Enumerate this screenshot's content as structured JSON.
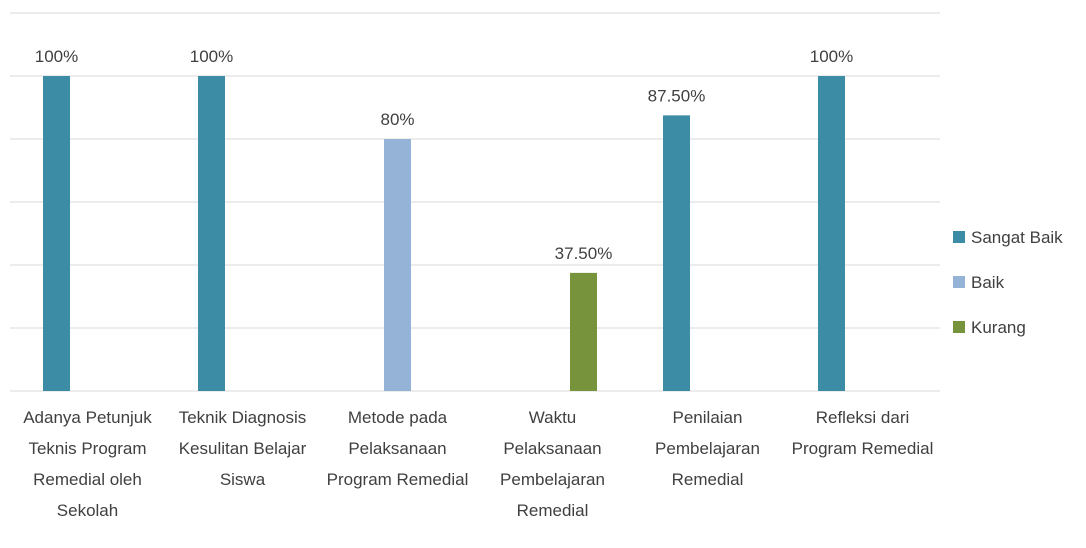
{
  "chart_data": {
    "type": "bar",
    "categories": [
      "Adanya Petunjuk Teknis Program Remedial oleh Sekolah",
      "Teknik Diagnosis Kesulitan Belajar Siswa",
      "Metode pada Pelaksanaan Program Remedial",
      "Waktu Pelaksanaan Pembelajaran Remedial",
      "Penilaian Pembelajaran Remedial",
      "Refleksi dari Program Remedial"
    ],
    "series": [
      {
        "name": "Sangat Baik",
        "color": "#3c8ca5",
        "values": [
          100,
          100,
          null,
          null,
          87.5,
          100
        ],
        "value_labels": [
          "100%",
          "100%",
          null,
          null,
          "87.50%",
          "100%"
        ]
      },
      {
        "name": "Baik",
        "color": "#95b3d7",
        "values": [
          null,
          null,
          80,
          null,
          null,
          null
        ],
        "value_labels": [
          null,
          null,
          "80%",
          null,
          null,
          null
        ]
      },
      {
        "name": "Kurang",
        "color": "#77933c",
        "values": [
          null,
          null,
          null,
          37.5,
          null,
          null
        ],
        "value_labels": [
          null,
          null,
          null,
          "37.50%",
          null,
          null
        ]
      }
    ],
    "ylim": [
      0,
      120
    ],
    "yticks": [
      0,
      20,
      40,
      60,
      80,
      100,
      120
    ],
    "grid": true,
    "legend": "right"
  }
}
